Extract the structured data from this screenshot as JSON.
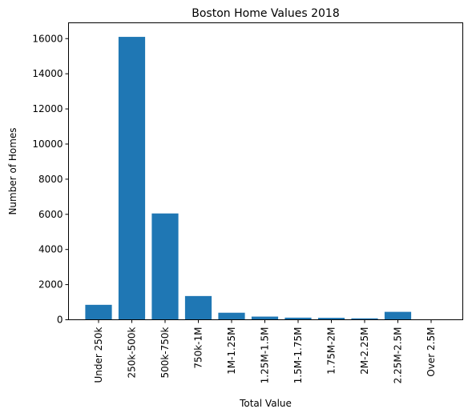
{
  "chart_data": {
    "type": "bar",
    "title": "Boston Home Values 2018",
    "xlabel": "Total Value",
    "ylabel": "Number of Homes",
    "categories": [
      "Under 250k",
      "250k-500k",
      "500k-750k",
      "750k-1M",
      "1M-1.25M",
      "1.25M-1.5M",
      "1.5M-1.75M",
      "1.75M-2M",
      "2M-2.25M",
      "2.25M-2.5M",
      "Over 2.5M"
    ],
    "values": [
      850,
      16100,
      6050,
      1350,
      400,
      180,
      120,
      110,
      80,
      450,
      0
    ],
    "ylim": [
      0,
      16900
    ],
    "yticks": [
      0,
      2000,
      4000,
      6000,
      8000,
      10000,
      12000,
      14000,
      16000
    ],
    "grid": false,
    "bar_color": "#1f77b4"
  }
}
